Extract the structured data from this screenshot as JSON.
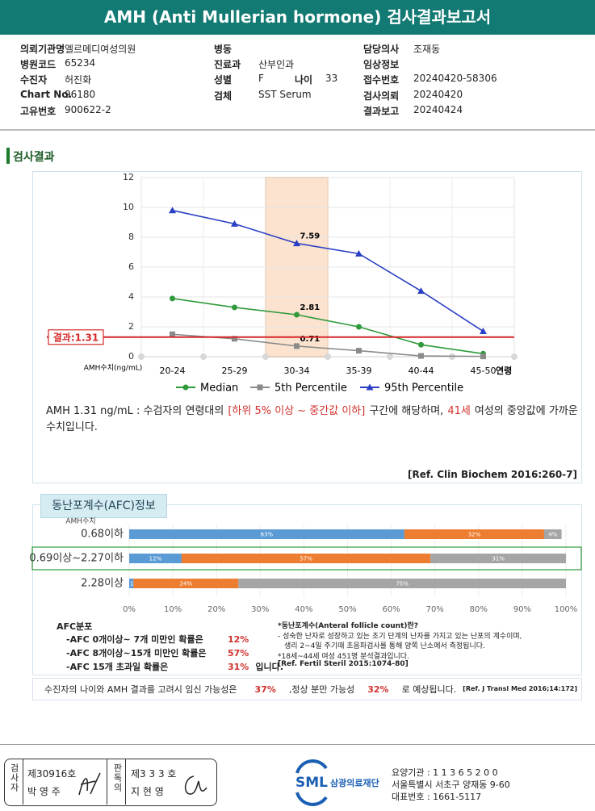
{
  "header": {
    "title": "AMH (Anti Mullerian hormone) 검사결과보고서"
  },
  "info": {
    "left": [
      {
        "label": "의뢰기관명",
        "value": "엘르메디여성의원"
      },
      {
        "label": "병원코드",
        "value": "65234"
      },
      {
        "label": "수진자",
        "value": "허진화"
      },
      {
        "label": "Chart No.",
        "value": "96180"
      },
      {
        "label": "고유번호",
        "value": "900622-2"
      }
    ],
    "middle": [
      {
        "label": "병동"
      },
      {
        "label": "진료과",
        "value": "산부인과"
      },
      {
        "label": "성별",
        "value": "F"
      },
      {
        "label": "나이",
        "value": "33"
      },
      {
        "label": "검체",
        "value": "SST Serum"
      }
    ],
    "right": [
      {
        "label": "담당의사",
        "value": "조재동"
      },
      {
        "label": "임상정보"
      },
      {
        "label": "접수번호",
        "value": "20240420-58306"
      },
      {
        "label": "검사의뢰",
        "value": "20240420"
      },
      {
        "label": "결과보고",
        "value": "20240424"
      }
    ]
  },
  "section_title": "검사결과",
  "chart_data": [
    {
      "type": "line",
      "y_label": "AMH수치(ng/mL)",
      "x_label": "연령",
      "categories": [
        "20-24",
        "25-29",
        "30-34",
        "35-39",
        "40-44",
        "45-50"
      ],
      "series": [
        {
          "name": "Median",
          "color": "#2e9a3a",
          "marker": "circle",
          "values": [
            3.9,
            3.3,
            2.81,
            2.0,
            0.8,
            0.2
          ]
        },
        {
          "name": "5th Percentile",
          "color": "#8a8a8a",
          "marker": "square",
          "values": [
            1.5,
            1.2,
            0.71,
            0.4,
            0.05,
            0.02
          ]
        },
        {
          "name": "95th Percentile",
          "color": "#2b3fc4",
          "marker": "triangle",
          "values": [
            9.8,
            8.9,
            7.59,
            6.9,
            4.4,
            1.7
          ]
        }
      ],
      "ylim": [
        0,
        12
      ],
      "yticks": [
        0,
        2,
        4,
        6,
        8,
        10,
        12
      ],
      "grid": true,
      "highlight": "30-34",
      "result": {
        "label": "결과:1.31",
        "value": 1.31,
        "color": "#d62728"
      }
    },
    {
      "type": "stacked-bar",
      "orientation": "horizontal",
      "category_header": "AMH수치",
      "categories": [
        "0.68이하",
        "0.69이상~2.27이하",
        "2.28이상"
      ],
      "highlight": "0.69이상~2.27이하",
      "series": [
        {
          "color": "#5b9bd5",
          "values": [
            63,
            12,
            1
          ],
          "value_labels": [
            "63%",
            "12%",
            "1%"
          ]
        },
        {
          "color": "#ed7d31",
          "values": [
            32,
            57,
            24
          ],
          "value_labels": [
            "32%",
            "57%",
            "24%"
          ]
        },
        {
          "color": "#a5a5a5",
          "values": [
            4,
            31,
            75
          ],
          "value_labels": [
            "4%",
            "31%",
            "75%"
          ]
        }
      ],
      "xlim": [
        0,
        100
      ],
      "xticks": [
        {
          "value": 0,
          "label": "0%"
        },
        {
          "value": 10,
          "label": "10%"
        },
        {
          "value": 20,
          "label": "20%"
        },
        {
          "value": 30,
          "label": "30%"
        },
        {
          "value": 40,
          "label": "40%"
        },
        {
          "value": 50,
          "label": "50%"
        },
        {
          "value": 60,
          "label": "60%"
        },
        {
          "value": 70,
          "label": "70%"
        },
        {
          "value": 80,
          "label": "80%"
        },
        {
          "value": 90,
          "label": "90%"
        },
        {
          "value": 100,
          "label": "100%"
        }
      ]
    }
  ],
  "interpretation": {
    "parts": [
      {
        "text": "AMH  1.31 ng/mL : 수검자의 연령대의"
      },
      {
        "text": "[하위 5% 이상 ~ 중간값 이하]",
        "color": "#d0312d"
      },
      {
        "text": "구간에 해당하며,"
      },
      {
        "text": "41세",
        "color": "#d0312d"
      },
      {
        "text": "여성의 중앙값에 가까운 수치입니다."
      }
    ],
    "reference": "[Ref. Clin Biochem 2016:260-7]"
  },
  "afc": {
    "title": "동난포계수(AFC)정보",
    "distribution_title": "AFC분포",
    "distribution": [
      {
        "text": "-AFC  0개이상~ 7개 미만인 확률은",
        "value": "12%"
      },
      {
        "text": "-AFC  8개이상~15개 미만인 확률은",
        "value": "57%"
      },
      {
        "text": "-AFC  15개 초과일 확률은",
        "value": "31%",
        "suffix": "입니다."
      }
    ],
    "notes": [
      "*동난포계수(Anteral follicle count)란?",
      "- 성숙한 난자로 성장하고 있는 초기 단계의 난자를 가지고 있는 난포의 계수이며,",
      "생리 2~4일 주기때 초음파검사를 통해 양쪽 난소에서 측정됩니다.",
      "*18세~44세 여성 451명 분석결과입니다.",
      "[Ref. Fertil Steril 2015:1074-80]"
    ]
  },
  "summary": {
    "parts": [
      {
        "text": "수진자의 나이와 AMH 결과를 고려시 임신 가능성은"
      },
      {
        "text": "37%",
        "color": "#d0312d"
      },
      {
        "text": ",정상 분만 가능성"
      },
      {
        "text": "32%",
        "color": "#d0312d"
      },
      {
        "text": "로 예상됩니다."
      }
    ],
    "reference": "[Ref. J Transl Med 2016;14:172]"
  },
  "footer": {
    "examiner_title": "검사자",
    "examiner_no": "제30916호",
    "examiner_name": "박 영 주",
    "reader_title": "판독의",
    "reader_no": "제3 3 3 호",
    "reader_name": "지 현 영",
    "logo": "SML",
    "org": "삼광의료재단",
    "lines": [
      "요양기관 : 1 1 3 6 5 2 0 0",
      "서울특별시 서초구 양재동 9-60",
      "대표번호 : 1661-5117"
    ]
  }
}
